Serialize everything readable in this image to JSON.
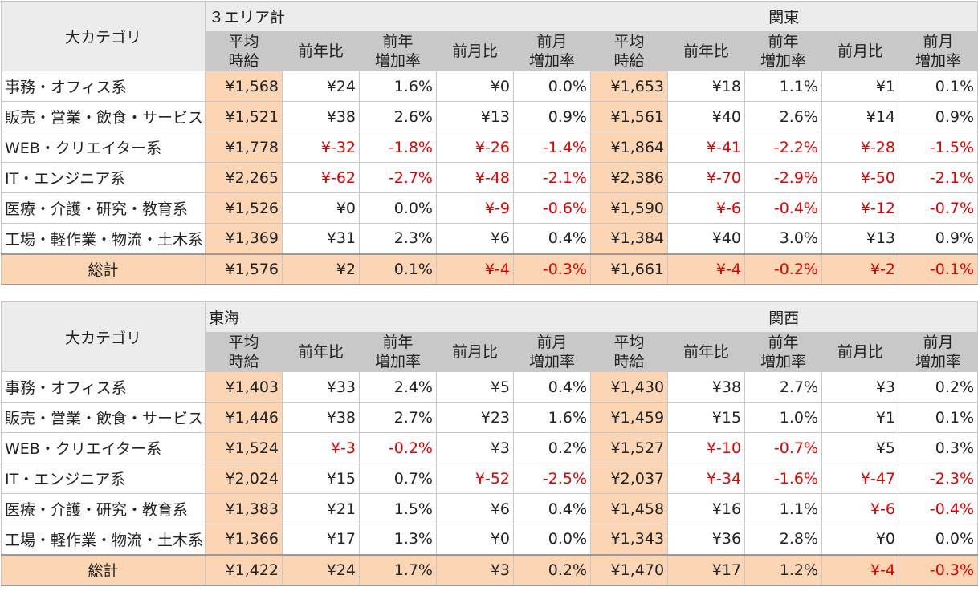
{
  "category_header": "大カテゴリ",
  "column_headers": [
    "平均\n時給",
    "前年比",
    "前年\n増加率",
    "前月比",
    "前月\n増加率"
  ],
  "total_label": "総計",
  "colors": {
    "avg_fill": "#fcd5b4",
    "header_fill": "#c8c8c8",
    "negative_text": "#e00000"
  },
  "sections": [
    {
      "areas": [
        "３エリア計",
        "関東"
      ],
      "rows": [
        {
          "label": "事務・オフィス系",
          "cells": [
            "¥1,568",
            "¥24",
            "1.6%",
            "¥0",
            "0.0%",
            "¥1,653",
            "¥18",
            "1.1%",
            "¥1",
            "0.1%"
          ]
        },
        {
          "label": "販売・営業・飲食・サービス系",
          "cells": [
            "¥1,521",
            "¥38",
            "2.6%",
            "¥13",
            "0.9%",
            "¥1,561",
            "¥40",
            "2.6%",
            "¥14",
            "0.9%"
          ]
        },
        {
          "label": "WEB・クリエイター系",
          "cells": [
            "¥1,778",
            "¥-32",
            "-1.8%",
            "¥-26",
            "-1.4%",
            "¥1,864",
            "¥-41",
            "-2.2%",
            "¥-28",
            "-1.5%"
          ]
        },
        {
          "label": "IT・エンジニア系",
          "cells": [
            "¥2,265",
            "¥-62",
            "-2.7%",
            "¥-48",
            "-2.1%",
            "¥2,386",
            "¥-70",
            "-2.9%",
            "¥-50",
            "-2.1%"
          ]
        },
        {
          "label": "医療・介護・研究・教育系",
          "cells": [
            "¥1,526",
            "¥0",
            "0.0%",
            "¥-9",
            "-0.6%",
            "¥1,590",
            "¥-6",
            "-0.4%",
            "¥-12",
            "-0.7%"
          ]
        },
        {
          "label": "工場・軽作業・物流・土木系",
          "cells": [
            "¥1,369",
            "¥31",
            "2.3%",
            "¥6",
            "0.4%",
            "¥1,384",
            "¥40",
            "3.0%",
            "¥13",
            "0.9%"
          ]
        }
      ],
      "total": [
        "¥1,576",
        "¥2",
        "0.1%",
        "¥-4",
        "-0.3%",
        "¥1,661",
        "¥-4",
        "-0.2%",
        "¥-2",
        "-0.1%"
      ]
    },
    {
      "areas": [
        "東海",
        "関西"
      ],
      "rows": [
        {
          "label": "事務・オフィス系",
          "cells": [
            "¥1,403",
            "¥33",
            "2.4%",
            "¥5",
            "0.4%",
            "¥1,430",
            "¥38",
            "2.7%",
            "¥3",
            "0.2%"
          ]
        },
        {
          "label": "販売・営業・飲食・サービス系",
          "cells": [
            "¥1,446",
            "¥38",
            "2.7%",
            "¥23",
            "1.6%",
            "¥1,459",
            "¥15",
            "1.0%",
            "¥1",
            "0.1%"
          ]
        },
        {
          "label": "WEB・クリエイター系",
          "cells": [
            "¥1,524",
            "¥-3",
            "-0.2%",
            "¥3",
            "0.2%",
            "¥1,527",
            "¥-10",
            "-0.7%",
            "¥5",
            "0.3%"
          ]
        },
        {
          "label": "IT・エンジニア系",
          "cells": [
            "¥2,024",
            "¥15",
            "0.7%",
            "¥-52",
            "-2.5%",
            "¥2,037",
            "¥-34",
            "-1.6%",
            "¥-47",
            "-2.3%"
          ]
        },
        {
          "label": "医療・介護・研究・教育系",
          "cells": [
            "¥1,383",
            "¥21",
            "1.5%",
            "¥6",
            "0.4%",
            "¥1,458",
            "¥16",
            "1.1%",
            "¥-6",
            "-0.4%"
          ]
        },
        {
          "label": "工場・軽作業・物流・土木系",
          "cells": [
            "¥1,366",
            "¥17",
            "1.3%",
            "¥0",
            "0.0%",
            "¥1,343",
            "¥36",
            "2.8%",
            "¥0",
            "0.0%"
          ]
        }
      ],
      "total": [
        "¥1,422",
        "¥24",
        "1.7%",
        "¥3",
        "0.2%",
        "¥1,470",
        "¥17",
        "1.2%",
        "¥-4",
        "-0.3%"
      ]
    }
  ]
}
